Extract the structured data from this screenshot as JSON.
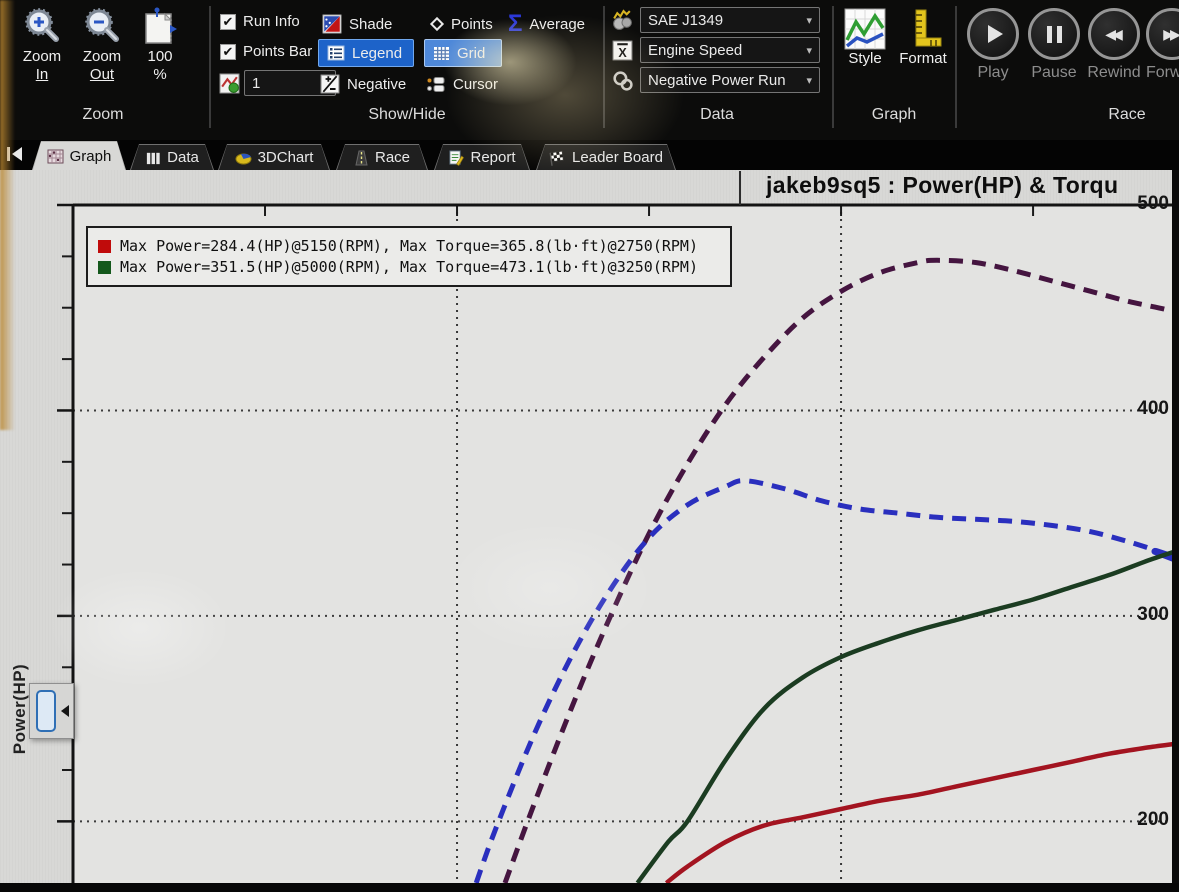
{
  "ribbon": {
    "zoom_group": {
      "label": "Zoom",
      "buttons": [
        {
          "line1": "Zoom",
          "line2": "In"
        },
        {
          "line1": "Zoom",
          "line2": "Out"
        },
        {
          "line1": "100",
          "line2": "%"
        }
      ]
    },
    "show_hide_group": {
      "label": "Show/Hide",
      "run_info": "Run Info",
      "points_bar": "Points Bar",
      "run_selector_value": "1",
      "shade": "Shade",
      "legend": "Legend",
      "negative": "Negative",
      "points": "Points",
      "grid": "Grid",
      "cursor": "Cursor",
      "average": "Average"
    },
    "data_group": {
      "label": "Data",
      "correction_dropdown": "SAE J1349",
      "axis_dropdown": "Engine Speed",
      "run_type_dropdown": "Negative Power Run"
    },
    "graph_group": {
      "label": "Graph",
      "style": "Style",
      "format": "Format"
    },
    "race_group": {
      "label": "Race",
      "play": "Play",
      "pause": "Pause",
      "rewind": "Rewind",
      "forward": "Forw"
    }
  },
  "tabs": [
    {
      "label": "Graph",
      "active": true
    },
    {
      "label": "Data",
      "active": false
    },
    {
      "label": "3DChart",
      "active": false
    },
    {
      "label": "Race",
      "active": false
    },
    {
      "label": "Report",
      "active": false
    },
    {
      "label": "Leader Board",
      "active": false
    }
  ],
  "chart": {
    "title": "jakeb9sq5 : Power(HP) & Torqu",
    "y_axis_label": "Power(HP)",
    "legend_rows": [
      {
        "swatch_color": "#c00b0b",
        "text": "Max Power=284.4(HP)@5150(RPM), Max Torque=365.8(lb·ft)@2750(RPM)"
      },
      {
        "swatch_color": "#14581c",
        "text": "Max Power=351.5(HP)@5000(RPM), Max Torque=473.1(lb·ft)@3250(RPM)"
      }
    ]
  },
  "chart_data": {
    "type": "line",
    "title": "jakeb9sq5 : Power(HP) & Torqu",
    "grid": "dotted",
    "legend_position": "top-left",
    "x_axis": {
      "unit": "Engine Speed (RPM), tick labels cut off below view",
      "visible_range": [
        1000,
        3880
      ],
      "gridlines_rpm": [
        2000,
        3000
      ],
      "tick_marks_rpm": [
        1500,
        2000,
        2500,
        3000,
        3500
      ]
    },
    "y_axis": {
      "label": "Power(HP)",
      "tick_labels": [
        500,
        400,
        300,
        200
      ],
      "minor_tick_step": 25,
      "visible_value_range": [
        170,
        500
      ]
    },
    "series": [
      {
        "name": "run2-torque",
        "display": "Green run torque, Max Torque=473.1 lb·ft @3250 RPM",
        "color": "#451540",
        "dash": true,
        "width": 5,
        "points": [
          [
            2125,
            170
          ],
          [
            2200,
            208
          ],
          [
            2300,
            256
          ],
          [
            2400,
            300
          ],
          [
            2500,
            340
          ],
          [
            2600,
            374
          ],
          [
            2700,
            403
          ],
          [
            2800,
            426
          ],
          [
            2900,
            445
          ],
          [
            3000,
            458
          ],
          [
            3100,
            467
          ],
          [
            3200,
            472
          ],
          [
            3250,
            473.1
          ],
          [
            3350,
            472
          ],
          [
            3450,
            468
          ],
          [
            3550,
            463
          ],
          [
            3650,
            458
          ],
          [
            3750,
            453
          ],
          [
            3850,
            449
          ],
          [
            3880,
            447
          ]
        ]
      },
      {
        "name": "run1-torque",
        "display": "Red run torque, Max Torque=365.8 lb·ft @2750 RPM",
        "color": "#2a2fbe",
        "dash": true,
        "width": 5,
        "end_marker": "thick-dash",
        "points": [
          [
            2050,
            170
          ],
          [
            2100,
            196
          ],
          [
            2200,
            242
          ],
          [
            2300,
            281
          ],
          [
            2400,
            313
          ],
          [
            2500,
            338
          ],
          [
            2600,
            354
          ],
          [
            2700,
            363
          ],
          [
            2750,
            365.8
          ],
          [
            2850,
            362
          ],
          [
            2950,
            356
          ],
          [
            3050,
            352
          ],
          [
            3150,
            350
          ],
          [
            3250,
            348
          ],
          [
            3350,
            347
          ],
          [
            3450,
            346
          ],
          [
            3550,
            344
          ],
          [
            3650,
            341
          ],
          [
            3750,
            336
          ],
          [
            3850,
            330
          ],
          [
            3880,
            328
          ]
        ]
      },
      {
        "name": "run2-power",
        "display": "Green run power, Max Power=351.5 HP @5000 RPM (peak beyond view)",
        "color": "#1b3c21",
        "dash": false,
        "width": 4.5,
        "points": [
          [
            2470,
            170
          ],
          [
            2550,
            190
          ],
          [
            2600,
            200
          ],
          [
            2700,
            230
          ],
          [
            2800,
            255
          ],
          [
            2900,
            270
          ],
          [
            3000,
            280
          ],
          [
            3100,
            287
          ],
          [
            3200,
            293
          ],
          [
            3300,
            298
          ],
          [
            3400,
            303
          ],
          [
            3500,
            308
          ],
          [
            3600,
            314
          ],
          [
            3700,
            320
          ],
          [
            3800,
            327
          ],
          [
            3880,
            332
          ]
        ]
      },
      {
        "name": "run1-power",
        "display": "Red run power, Max Power=284.4 HP @5150 RPM (peak beyond view)",
        "color": "#a31420",
        "dash": false,
        "width": 4.5,
        "points": [
          [
            2545,
            170
          ],
          [
            2600,
            178
          ],
          [
            2700,
            190
          ],
          [
            2800,
            198
          ],
          [
            2900,
            202
          ],
          [
            3000,
            206
          ],
          [
            3100,
            210
          ],
          [
            3200,
            213
          ],
          [
            3300,
            217
          ],
          [
            3400,
            221
          ],
          [
            3500,
            225
          ],
          [
            3600,
            229
          ],
          [
            3700,
            233
          ],
          [
            3800,
            236
          ],
          [
            3880,
            238
          ]
        ]
      }
    ]
  }
}
